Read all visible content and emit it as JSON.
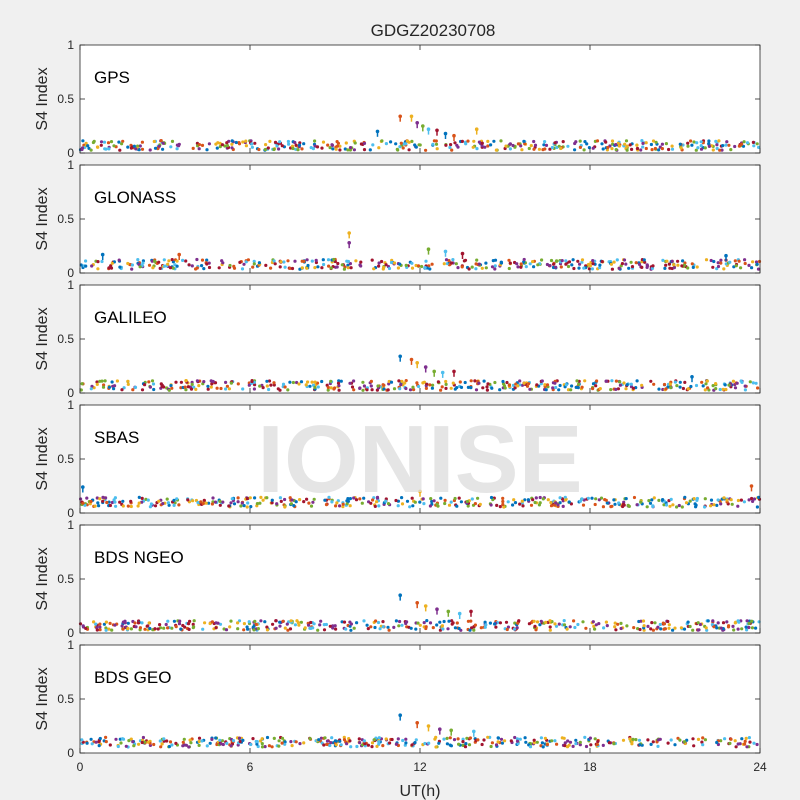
{
  "chart_data": {
    "type": "scatter",
    "title": "GDGZ20230708",
    "watermark": "IONISE",
    "xlabel": "UT(h)",
    "ylabel": "S4 Index",
    "xlim": [
      0,
      24
    ],
    "ylim": [
      0,
      1
    ],
    "xticks": [
      "0",
      "6",
      "12",
      "18",
      "24"
    ],
    "yticks": [
      "0",
      "0.5",
      "1"
    ],
    "grid": false,
    "series_colors": [
      "#0072BD",
      "#D95319",
      "#EDB120",
      "#7E2F8E",
      "#77AC30",
      "#4DBEEE",
      "#A2142F"
    ],
    "panels": [
      {
        "name": "GPS",
        "baseline": 0.07,
        "spikes": [
          {
            "x": 10.5,
            "y": 0.2
          },
          {
            "x": 11.3,
            "y": 0.34
          },
          {
            "x": 11.7,
            "y": 0.34
          },
          {
            "x": 11.9,
            "y": 0.28
          },
          {
            "x": 12.1,
            "y": 0.25
          },
          {
            "x": 12.3,
            "y": 0.22
          },
          {
            "x": 12.6,
            "y": 0.21
          },
          {
            "x": 12.9,
            "y": 0.18
          },
          {
            "x": 13.2,
            "y": 0.16
          },
          {
            "x": 14.0,
            "y": 0.22
          }
        ]
      },
      {
        "name": "GLONASS",
        "baseline": 0.08,
        "spikes": [
          {
            "x": 0.8,
            "y": 0.17
          },
          {
            "x": 3.5,
            "y": 0.17
          },
          {
            "x": 9.5,
            "y": 0.37
          },
          {
            "x": 9.5,
            "y": 0.28
          },
          {
            "x": 12.3,
            "y": 0.22
          },
          {
            "x": 12.9,
            "y": 0.2
          },
          {
            "x": 13.5,
            "y": 0.18
          },
          {
            "x": 22.8,
            "y": 0.16
          }
        ]
      },
      {
        "name": "GALILEO",
        "baseline": 0.07,
        "spikes": [
          {
            "x": 11.3,
            "y": 0.34
          },
          {
            "x": 11.7,
            "y": 0.31
          },
          {
            "x": 11.9,
            "y": 0.28
          },
          {
            "x": 12.2,
            "y": 0.24
          },
          {
            "x": 12.5,
            "y": 0.2
          },
          {
            "x": 12.8,
            "y": 0.19
          },
          {
            "x": 13.2,
            "y": 0.2
          },
          {
            "x": 21.6,
            "y": 0.15
          }
        ]
      },
      {
        "name": "SBAS",
        "baseline": 0.1,
        "spikes": [
          {
            "x": 0.1,
            "y": 0.24
          },
          {
            "x": 23.7,
            "y": 0.25
          },
          {
            "x": 12.0,
            "y": 0.2
          }
        ]
      },
      {
        "name": "BDS NGEO",
        "baseline": 0.07,
        "spikes": [
          {
            "x": 11.3,
            "y": 0.35
          },
          {
            "x": 11.9,
            "y": 0.28
          },
          {
            "x": 12.2,
            "y": 0.25
          },
          {
            "x": 12.6,
            "y": 0.22
          },
          {
            "x": 13.0,
            "y": 0.2
          },
          {
            "x": 13.4,
            "y": 0.18
          },
          {
            "x": 13.8,
            "y": 0.2
          }
        ]
      },
      {
        "name": "BDS GEO",
        "baseline": 0.1,
        "spikes": [
          {
            "x": 11.3,
            "y": 0.35
          },
          {
            "x": 11.9,
            "y": 0.28
          },
          {
            "x": 12.3,
            "y": 0.25
          },
          {
            "x": 12.7,
            "y": 0.22
          },
          {
            "x": 13.1,
            "y": 0.21
          },
          {
            "x": 13.9,
            "y": 0.2
          }
        ]
      }
    ]
  }
}
